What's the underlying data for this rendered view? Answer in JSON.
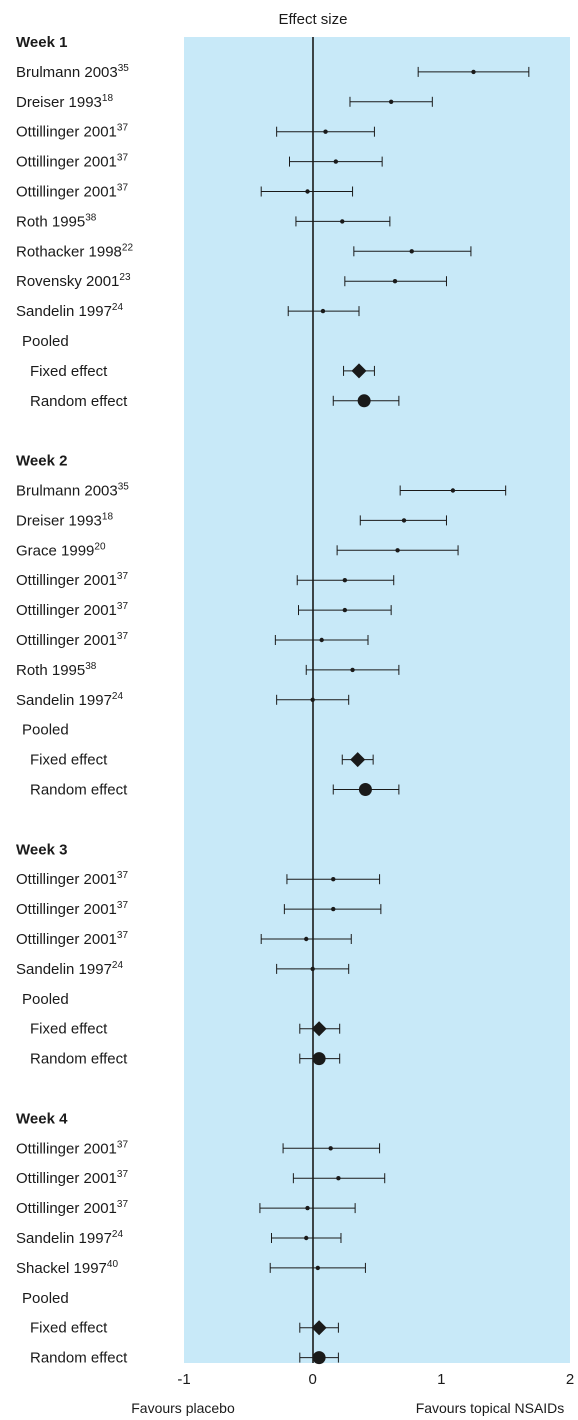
{
  "chart_data": {
    "type": "forest",
    "title": "Effect size",
    "xlim": [
      -1,
      2
    ],
    "x_ticks": [
      "-1",
      "0",
      "1",
      "2"
    ],
    "favours_left": "Favours placebo",
    "favours_right": "Favours topical NSAIDs",
    "colors": {
      "panel": "#c8e9f8",
      "ink": "#1a1a1a"
    },
    "groups": [
      {
        "header": "Week 1",
        "studies": [
          {
            "name": "Brulmann 2003",
            "ref": "35",
            "est": 1.25,
            "lo": 0.82,
            "hi": 1.68
          },
          {
            "name": "Dreiser 1993",
            "ref": "18",
            "est": 0.61,
            "lo": 0.29,
            "hi": 0.93
          },
          {
            "name": "Ottillinger 2001",
            "ref": "37",
            "est": 0.1,
            "lo": -0.28,
            "hi": 0.48
          },
          {
            "name": "Ottillinger 2001",
            "ref": "37",
            "est": 0.18,
            "lo": -0.18,
            "hi": 0.54
          },
          {
            "name": "Ottillinger 2001",
            "ref": "37",
            "est": -0.04,
            "lo": -0.4,
            "hi": 0.31
          },
          {
            "name": "Roth 1995",
            "ref": "38",
            "est": 0.23,
            "lo": -0.13,
            "hi": 0.6
          },
          {
            "name": "Rothacker 1998",
            "ref": "22",
            "est": 0.77,
            "lo": 0.32,
            "hi": 1.23
          },
          {
            "name": "Rovensky 2001",
            "ref": "23",
            "est": 0.64,
            "lo": 0.25,
            "hi": 1.04
          },
          {
            "name": "Sandelin 1997",
            "ref": "24",
            "est": 0.08,
            "lo": -0.19,
            "hi": 0.36
          }
        ],
        "pooled_label": "Pooled",
        "fixed": {
          "name": "Fixed effect",
          "est": 0.36,
          "lo": 0.24,
          "hi": 0.48
        },
        "random": {
          "name": "Random effect",
          "est": 0.4,
          "lo": 0.16,
          "hi": 0.67
        }
      },
      {
        "header": "Week 2",
        "studies": [
          {
            "name": "Brulmann 2003",
            "ref": "35",
            "est": 1.09,
            "lo": 0.68,
            "hi": 1.5
          },
          {
            "name": "Dreiser 1993",
            "ref": "18",
            "est": 0.71,
            "lo": 0.37,
            "hi": 1.04
          },
          {
            "name": "Grace 1999",
            "ref": "20",
            "est": 0.66,
            "lo": 0.19,
            "hi": 1.13
          },
          {
            "name": "Ottillinger 2001",
            "ref": "37",
            "est": 0.25,
            "lo": -0.12,
            "hi": 0.63
          },
          {
            "name": "Ottillinger 2001",
            "ref": "37",
            "est": 0.25,
            "lo": -0.11,
            "hi": 0.61
          },
          {
            "name": "Ottillinger 2001",
            "ref": "37",
            "est": 0.07,
            "lo": -0.29,
            "hi": 0.43
          },
          {
            "name": "Roth 1995",
            "ref": "38",
            "est": 0.31,
            "lo": -0.05,
            "hi": 0.67
          },
          {
            "name": "Sandelin 1997",
            "ref": "24",
            "est": 0.0,
            "lo": -0.28,
            "hi": 0.28
          }
        ],
        "pooled_label": "Pooled",
        "fixed": {
          "name": "Fixed effect",
          "est": 0.35,
          "lo": 0.23,
          "hi": 0.47
        },
        "random": {
          "name": "Random effect",
          "est": 0.41,
          "lo": 0.16,
          "hi": 0.67
        }
      },
      {
        "header": "Week 3",
        "studies": [
          {
            "name": "Ottillinger 2001",
            "ref": "37",
            "est": 0.16,
            "lo": -0.2,
            "hi": 0.52
          },
          {
            "name": "Ottillinger 2001",
            "ref": "37",
            "est": 0.16,
            "lo": -0.22,
            "hi": 0.53
          },
          {
            "name": "Ottillinger 2001",
            "ref": "37",
            "est": -0.05,
            "lo": -0.4,
            "hi": 0.3
          },
          {
            "name": "Sandelin 1997",
            "ref": "24",
            "est": 0.0,
            "lo": -0.28,
            "hi": 0.28
          }
        ],
        "pooled_label": "Pooled",
        "fixed": {
          "name": "Fixed effect",
          "est": 0.05,
          "lo": -0.1,
          "hi": 0.21
        },
        "random": {
          "name": "Random effect",
          "est": 0.05,
          "lo": -0.1,
          "hi": 0.21
        }
      },
      {
        "header": "Week 4",
        "studies": [
          {
            "name": "Ottillinger 2001",
            "ref": "37",
            "est": 0.14,
            "lo": -0.23,
            "hi": 0.52
          },
          {
            "name": "Ottillinger 2001",
            "ref": "37",
            "est": 0.2,
            "lo": -0.15,
            "hi": 0.56
          },
          {
            "name": "Ottillinger 2001",
            "ref": "37",
            "est": -0.04,
            "lo": -0.41,
            "hi": 0.33
          },
          {
            "name": "Sandelin 1997",
            "ref": "24",
            "est": -0.05,
            "lo": -0.32,
            "hi": 0.22
          },
          {
            "name": "Shackel 1997",
            "ref": "40",
            "est": 0.04,
            "lo": -0.33,
            "hi": 0.41
          }
        ],
        "pooled_label": "Pooled",
        "fixed": {
          "name": "Fixed effect",
          "est": 0.05,
          "lo": -0.1,
          "hi": 0.2
        },
        "random": {
          "name": "Random effect",
          "est": 0.05,
          "lo": -0.1,
          "hi": 0.2
        }
      }
    ]
  }
}
